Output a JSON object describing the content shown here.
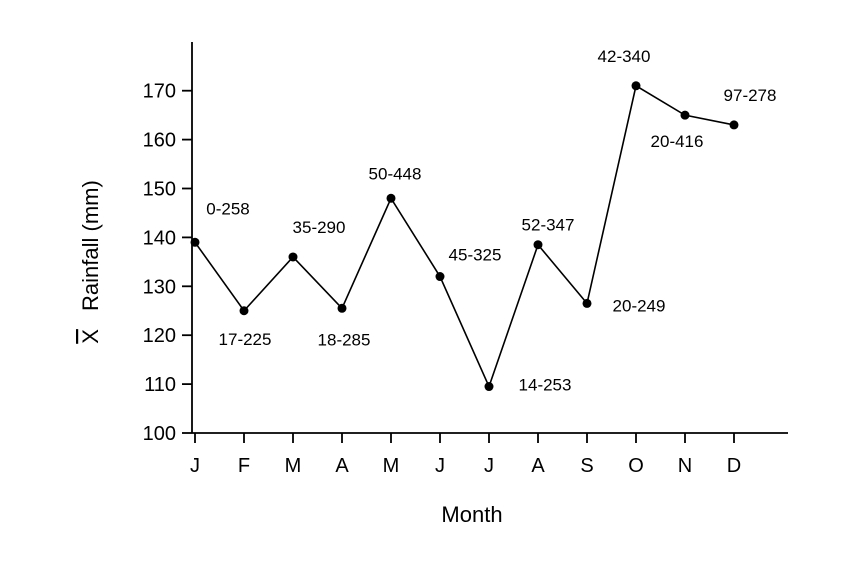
{
  "chart_data": {
    "type": "line",
    "title": "",
    "xlabel": "Month",
    "ylabel": "X̅ Rainfall (mm)",
    "ylabel_symbol": "X",
    "ylabel_text": "Rainfall (mm)",
    "categories": [
      "J",
      "F",
      "M",
      "A",
      "M",
      "J",
      "J",
      "A",
      "S",
      "O",
      "N",
      "D"
    ],
    "ylim": [
      100,
      170
    ],
    "yticks": [
      100,
      110,
      120,
      130,
      140,
      150,
      160,
      170
    ],
    "grid": false,
    "legend": false,
    "series": [
      {
        "values": [
          139,
          125,
          136,
          125.5,
          148,
          132,
          109.5,
          138.5,
          126.5,
          171,
          165,
          163
        ],
        "labels": [
          "0-258",
          "17-225",
          "35-290",
          "18-285",
          "50-448",
          "45-325",
          "14-253",
          "52-347",
          "20-249",
          "42-340",
          "20-416",
          "97-278"
        ],
        "label_positions": [
          "above",
          "below",
          "above",
          "below",
          "above",
          "above-right",
          "right",
          "above",
          "right",
          "above",
          "below",
          "above"
        ]
      }
    ],
    "colors": {
      "line": "#000000",
      "marker": "#000000",
      "axis": "#000000"
    }
  }
}
